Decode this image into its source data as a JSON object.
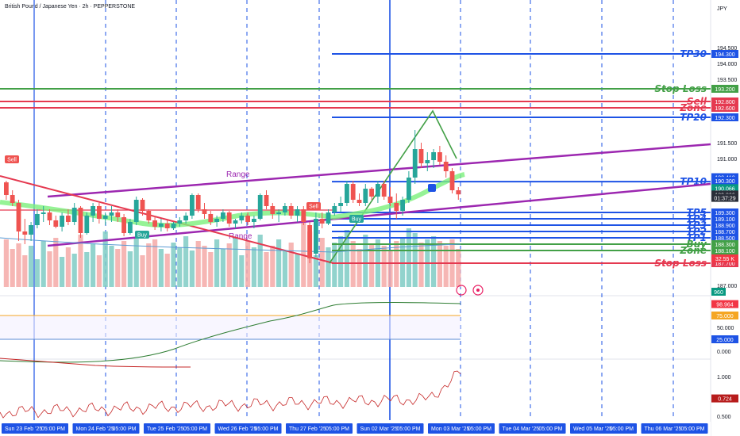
{
  "header": {
    "title": "British Pound / Japanese Yen · 2h · PEPPERSTONE",
    "currency": "JPY"
  },
  "chart_data": {
    "type": "candlestick",
    "title": "British Pound / Japanese Yen · 2h · PEPPERSTONE",
    "yunit": "JPY",
    "ylim": [
      187.0,
      194.75
    ],
    "price_ticks": [
      "194.500",
      "194.000",
      "193.500",
      "191.500",
      "191.000",
      "187.000"
    ],
    "date_labels": [
      "Sun 23 Feb '25",
      "05:00 PM",
      "Mon 24 Feb '25",
      "05:00 PM",
      "Tue 25 Feb '25",
      "05:00 PM",
      "Wed 26 Feb '25",
      "05:00 PM",
      "Thu 27 Feb '25",
      "05:00 PM",
      "Sun 02 Mar '25",
      "05:00 PM",
      "Mon 03 Mar '25",
      "05:00 PM",
      "Tue 04 Mar '25",
      "05:00 PM",
      "Wed 05 Mar '25",
      "05:00 PM",
      "Thu 06 Mar '25",
      "05:00 PM"
    ],
    "levels": [
      {
        "label": "TP30",
        "price": 194.3,
        "price_label": "194.300",
        "color": "#1e53e5"
      },
      {
        "label": "Stop Loss",
        "price": 193.2,
        "price_label": "193.200",
        "color": "#43a047"
      },
      {
        "label": "Sell",
        "price": 192.8,
        "price_label": "192.800",
        "color": "#e53950"
      },
      {
        "label": "Zone",
        "price": 192.6,
        "price_label": "192.600",
        "color": "#e53950"
      },
      {
        "label": "TP20",
        "price": 192.3,
        "price_label": "192.300",
        "color": "#1e53e5"
      },
      {
        "label": "TP10",
        "price": 190.271,
        "price_label": "190.271",
        "color": "#1e53e5"
      },
      {
        "label": "TP5",
        "price": 189.3,
        "price_label": "189.300",
        "color": "#1e53e5"
      },
      {
        "label": "TP4",
        "price": 189.1,
        "price_label": "189.100",
        "color": "#1e53e5"
      },
      {
        "label": "TP3",
        "price": 188.9,
        "price_label": "188.900",
        "color": "#1e53e5"
      },
      {
        "label": "TP2",
        "price": 188.7,
        "price_label": "188.700",
        "color": "#1e53e5"
      },
      {
        "label": "TP1",
        "price": 188.5,
        "price_label": "188.500",
        "color": "#1e53e5"
      },
      {
        "label": "Buy",
        "price": 188.3,
        "price_label": "188.300",
        "color": "#43a047"
      },
      {
        "label": "Zone",
        "price": 188.1,
        "price_label": "188.100",
        "color": "#43a047"
      },
      {
        "label": "Stop Loss",
        "price": 187.7,
        "price_label": "187.700",
        "color": "#e53950"
      }
    ],
    "extra_price_labels": [
      {
        "text": "190.412",
        "price": 190.412,
        "color": "#1e53e5"
      },
      {
        "text": "190.300",
        "price": 190.3,
        "color": "#1e53e5"
      },
      {
        "text": "190.066",
        "price": 190.066,
        "color": "#089981"
      },
      {
        "text": "189.866",
        "price": 189.866,
        "color": "#2a2e39"
      },
      {
        "text": "01:37:29",
        "price": 189.76,
        "color": "#2a2e39"
      },
      {
        "text": "32.55 K",
        "price": 187.85,
        "color": "#f23645"
      }
    ],
    "annotations": [
      "Range",
      "Range",
      "Sell",
      "Buy",
      "Sell",
      "Buy"
    ],
    "candles_ohlc": [
      [
        190.25,
        190.3,
        189.7,
        189.85
      ],
      [
        189.85,
        190.0,
        189.5,
        189.6
      ],
      [
        189.6,
        189.7,
        188.4,
        188.7
      ],
      [
        188.7,
        189.1,
        188.3,
        188.6
      ],
      [
        188.6,
        189.0,
        188.4,
        188.9
      ],
      [
        188.9,
        189.4,
        188.8,
        189.25
      ],
      [
        189.25,
        189.5,
        189.0,
        189.3
      ],
      [
        189.3,
        189.4,
        188.9,
        189.05
      ],
      [
        189.05,
        189.2,
        188.8,
        188.85
      ],
      [
        188.85,
        189.3,
        188.7,
        189.2
      ],
      [
        189.2,
        189.4,
        188.9,
        189.0
      ],
      [
        189.0,
        189.6,
        188.9,
        189.45
      ],
      [
        189.45,
        189.5,
        188.5,
        188.65
      ],
      [
        188.65,
        189.3,
        188.6,
        189.2
      ],
      [
        189.2,
        189.6,
        189.0,
        189.5
      ],
      [
        189.5,
        189.6,
        188.95,
        189.1
      ],
      [
        189.1,
        189.3,
        188.9,
        189.2
      ],
      [
        189.2,
        189.5,
        189.0,
        189.3
      ],
      [
        189.3,
        189.4,
        189.0,
        189.15
      ],
      [
        189.15,
        189.25,
        188.55,
        188.65
      ],
      [
        188.65,
        189.1,
        188.6,
        189.0
      ],
      [
        189.0,
        189.8,
        188.9,
        189.7
      ],
      [
        189.7,
        189.75,
        189.2,
        189.35
      ],
      [
        189.35,
        189.4,
        188.95,
        189.05
      ],
      [
        189.05,
        189.2,
        188.75,
        188.85
      ],
      [
        188.85,
        189.1,
        188.7,
        188.95
      ],
      [
        188.95,
        189.05,
        188.7,
        188.8
      ],
      [
        188.8,
        189.0,
        188.75,
        188.95
      ],
      [
        188.95,
        189.15,
        188.85,
        189.05
      ],
      [
        189.05,
        189.3,
        188.95,
        189.2
      ],
      [
        189.2,
        189.9,
        189.1,
        189.85
      ],
      [
        189.85,
        189.9,
        189.3,
        189.4
      ],
      [
        189.4,
        189.6,
        189.1,
        189.25
      ],
      [
        189.25,
        189.35,
        188.9,
        189.0
      ],
      [
        189.0,
        189.2,
        188.85,
        189.1
      ],
      [
        189.1,
        189.4,
        189.0,
        189.3
      ],
      [
        189.3,
        189.35,
        188.85,
        188.95
      ],
      [
        188.95,
        189.1,
        188.8,
        189.05
      ],
      [
        189.05,
        189.3,
        188.95,
        189.2
      ],
      [
        189.2,
        189.3,
        188.9,
        189.0
      ],
      [
        189.0,
        189.2,
        188.8,
        189.1
      ],
      [
        189.1,
        189.9,
        189.05,
        189.85
      ],
      [
        189.85,
        190.0,
        189.4,
        189.5
      ],
      [
        189.5,
        189.6,
        189.1,
        189.25
      ],
      [
        189.25,
        189.4,
        189.0,
        189.3
      ],
      [
        189.3,
        189.6,
        189.2,
        189.5
      ],
      [
        189.5,
        189.6,
        189.1,
        189.2
      ],
      [
        189.2,
        189.5,
        189.0,
        189.4
      ],
      [
        189.4,
        189.5,
        188.9,
        189.0
      ],
      [
        188.9,
        189.0,
        187.7,
        187.85
      ],
      [
        188.0,
        189.3,
        187.9,
        189.1
      ],
      [
        189.1,
        189.3,
        188.8,
        188.95
      ],
      [
        188.95,
        189.4,
        188.9,
        189.3
      ],
      [
        189.3,
        189.6,
        189.2,
        189.5
      ],
      [
        189.5,
        189.8,
        189.3,
        189.6
      ],
      [
        189.6,
        190.3,
        189.5,
        190.2
      ],
      [
        190.2,
        190.3,
        189.6,
        189.7
      ],
      [
        189.7,
        189.9,
        189.5,
        189.6
      ],
      [
        189.6,
        190.2,
        189.5,
        190.05
      ],
      [
        190.05,
        190.1,
        189.7,
        189.8
      ],
      [
        189.8,
        190.3,
        189.6,
        190.2
      ],
      [
        190.2,
        190.3,
        189.7,
        189.8
      ],
      [
        189.8,
        190.1,
        189.5,
        189.6
      ],
      [
        189.6,
        189.9,
        189.1,
        189.35
      ],
      [
        189.35,
        189.8,
        189.2,
        189.7
      ],
      [
        189.7,
        190.6,
        189.6,
        190.4
      ],
      [
        190.4,
        191.9,
        190.2,
        191.3
      ],
      [
        191.3,
        191.5,
        190.7,
        190.85
      ],
      [
        190.85,
        191.2,
        190.6,
        190.95
      ],
      [
        190.95,
        191.3,
        190.7,
        191.2
      ],
      [
        191.2,
        191.4,
        190.8,
        190.9
      ],
      [
        190.9,
        191.1,
        190.4,
        190.6
      ],
      [
        190.6,
        190.7,
        189.9,
        190.0
      ],
      [
        190.0,
        190.1,
        189.7,
        189.87
      ]
    ],
    "indicator1": {
      "levels": [
        "98.964",
        "75.000",
        "50.000",
        "25.000",
        "0.000"
      ],
      "current": "98.964"
    },
    "indicator2": {
      "levels": [
        "1.000",
        "0.724",
        "0.500"
      ],
      "current": "0.724"
    },
    "volume_badge": "960"
  },
  "colors": {
    "up": "#26a69a",
    "down": "#ef5350",
    "blue": "#1e53e5",
    "green": "#43a047",
    "red": "#e53950",
    "purple": "#9c27b0"
  }
}
